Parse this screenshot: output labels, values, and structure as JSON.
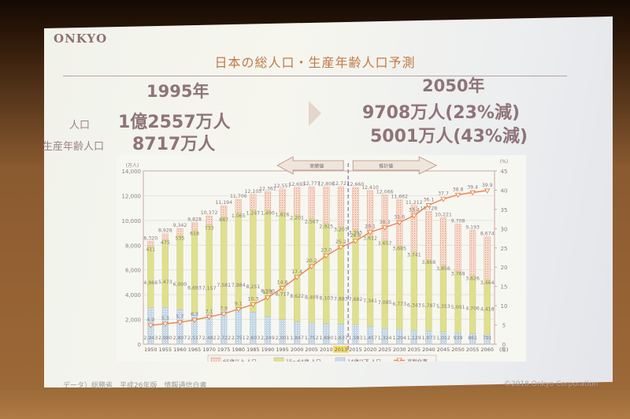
{
  "slide": {
    "logo": "ONKYO",
    "title": "日本の総人口・生産年齢人口予測",
    "left": {
      "year": "1995年",
      "population_label": "人口",
      "population_value": "1億2557万人",
      "working_label": "生産年齢人口",
      "working_value": "8717万人"
    },
    "right": {
      "year": "2050年",
      "population_value": "9708万人(23%減)",
      "working_value": "5001万人(43%減)"
    },
    "footer_source": "データ）総務省　平成26年版　情報通信白書",
    "footer_copyright": "©2018 Onkyo Corporation"
  },
  "chart_data": {
    "type": "bar",
    "stacked": true,
    "title": "",
    "xlabel": "(年)",
    "ylabel": "(万人)",
    "y2label": "(%)",
    "ylim": [
      0,
      14000
    ],
    "y2lim": [
      0,
      45
    ],
    "yticks": [
      "0",
      "2,000",
      "4,000",
      "6,000",
      "8,000",
      "10,000",
      "12,000",
      "14,000"
    ],
    "y2ticks": [
      "0",
      "5",
      "10",
      "15",
      "20",
      "25",
      "30",
      "35",
      "40",
      "45"
    ],
    "grid": true,
    "legend_position": "bottom",
    "annotations": {
      "actual": "実績値",
      "estimate": "推計値",
      "highlight_year": "2013"
    },
    "categories": [
      "1950",
      "1955",
      "1960",
      "1965",
      "1970",
      "1975",
      "1980",
      "1985",
      "1990",
      "1995",
      "2000",
      "2005",
      "2010",
      "2013",
      "2015",
      "2020",
      "2025",
      "2030",
      "2035",
      "2040",
      "2045",
      "2050",
      "2055",
      "2060"
    ],
    "totals": [
      8320,
      8928,
      9342,
      9828,
      10372,
      11194,
      11706,
      12105,
      12361,
      12557,
      12693,
      12777,
      12806,
      12727,
      12660,
      12410,
      12066,
      11662,
      11212,
      10728,
      10221,
      9708,
      9193,
      8674
    ],
    "series": [
      {
        "name": "14歳以下 人口",
        "color": "#b9cfe0",
        "values": [
          2943,
          2980,
          2807,
          2517,
          2482,
          2722,
          2751,
          2603,
          2249,
          2001,
          1847,
          1752,
          1680,
          1637,
          1583,
          1457,
          1324,
          1204,
          1129,
          1073,
          1012,
          939,
          861,
          791
        ]
      },
      {
        "name": "15～64歳 人口",
        "color": "#dfe08e",
        "values": [
          4966,
          5473,
          6000,
          6693,
          7157,
          7581,
          7884,
          8251,
          8590,
          8717,
          8622,
          8409,
          8103,
          7883,
          7682,
          7341,
          7085,
          6773,
          6343,
          5787,
          5353,
          5001,
          4706,
          4418
        ]
      },
      {
        "name": "65歳以上 人口",
        "color": "#f2c7b4",
        "values": [
          411,
          475,
          535,
          618,
          733,
          887,
          1065,
          1247,
          1490,
          1826,
          2201,
          2567,
          2925,
          3207,
          3395,
          3612,
          3657,
          3685,
          3741,
          3868,
          3856,
          3768,
          3626,
          3464
        ]
      },
      {
        "name": "高齢化率",
        "type": "line",
        "axis": "y2",
        "color": "#e8854a",
        "values": [
          4.9,
          5.3,
          5.7,
          6.3,
          7.1,
          7.9,
          9.1,
          10.3,
          12.1,
          14.6,
          17.4,
          20.2,
          23.0,
          25.2,
          26.8,
          29.1,
          30.3,
          31.6,
          33.4,
          36.1,
          37.7,
          38.8,
          39.4,
          39.9
        ]
      }
    ]
  }
}
